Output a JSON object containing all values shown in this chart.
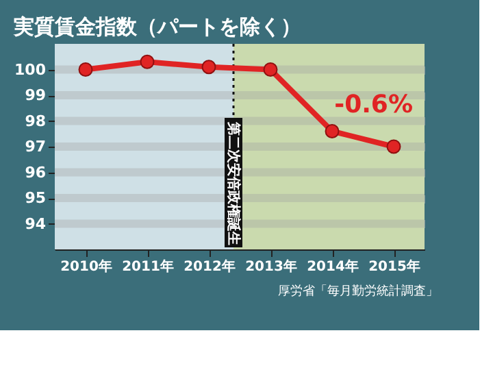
{
  "chart_data": {
    "type": "line",
    "title": "実質賃金指数（パートを除く）",
    "x": [
      2010,
      2011,
      2012,
      2013,
      2014,
      2015
    ],
    "series": [
      {
        "color": "#e02424",
        "values": [
          100.0,
          100.3,
          100.1,
          100.0,
          97.6,
          97.0
        ]
      }
    ],
    "xlim": [
      2009.5,
      2015.5
    ],
    "xticks": [
      {
        "value": 2010,
        "label": "2010年"
      },
      {
        "value": 2011,
        "label": "2011年"
      },
      {
        "value": 2012,
        "label": "2012年"
      },
      {
        "value": 2013,
        "label": "2013年"
      },
      {
        "value": 2014,
        "label": "2014年"
      },
      {
        "value": 2015,
        "label": "2015年"
      }
    ],
    "ylim": [
      93,
      101
    ],
    "yticks": [
      94,
      95,
      96,
      97,
      98,
      99,
      100
    ],
    "ref_lines": [
      {
        "axis": "x",
        "value": 2012.4,
        "label": "第二次安倍政権誕生",
        "color": "#111111",
        "line_style": "dotted"
      }
    ],
    "bands": [
      {
        "axis": "x",
        "from": 2012.4,
        "to": 2015.5,
        "color": "#c8d8a0"
      }
    ],
    "annotations": [
      {
        "text": "-0.6%",
        "x": 2015,
        "y": 97.0
      },
      "厚労省「毎月勤労統計調査」"
    ],
    "grid": "y",
    "marker": "circle",
    "line_style": "solid"
  }
}
